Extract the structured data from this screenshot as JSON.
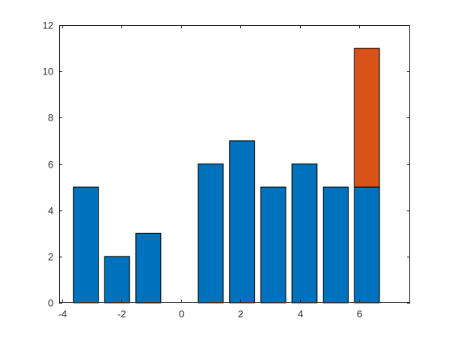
{
  "chart_data": {
    "type": "bar",
    "stacked": true,
    "x": [
      -3.2,
      -2.15,
      -1.1,
      0,
      1,
      2.05,
      3.1,
      4.15,
      5.2,
      6.25
    ],
    "series": [
      {
        "color": "#0072BD",
        "values": [
          5,
          2,
          3,
          0,
          6,
          7,
          5,
          6,
          5,
          5
        ]
      },
      {
        "color": "#D95319",
        "values": [
          0,
          0,
          0,
          0,
          0,
          0,
          0,
          0,
          0,
          6
        ]
      }
    ],
    "bar_width": 0.84,
    "xlim": [
      -4.1,
      7.7
    ],
    "ylim": [
      0,
      12
    ],
    "xticks": [
      -4,
      -2,
      0,
      2,
      4,
      6
    ],
    "yticks": [
      0,
      2,
      4,
      6,
      8,
      10,
      12
    ],
    "xtick_labels": [
      "-4",
      "-2",
      "0",
      "2",
      "4",
      "6"
    ],
    "ytick_labels": [
      "0",
      "2",
      "4",
      "6",
      "8",
      "10",
      "12"
    ],
    "grid": false,
    "box": true
  }
}
